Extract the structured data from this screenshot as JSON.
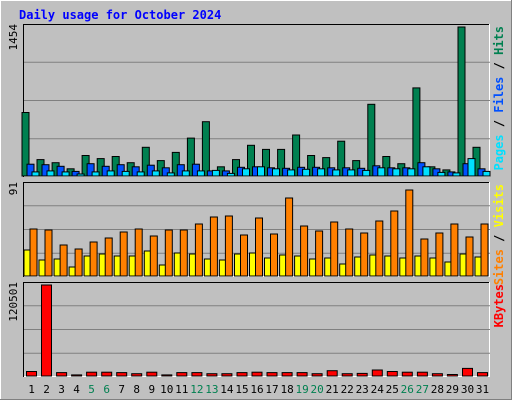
{
  "chart_data": [
    {
      "type": "bar",
      "title": "Daily usage for October 2024",
      "ymax_label": "1454",
      "legend": [
        "Pages",
        "Files",
        "Hits"
      ],
      "legend_separator": " / ",
      "colors": {
        "Pages": "#00e0ff",
        "Files": "#0050ff",
        "Hits": "#008050"
      },
      "categories": [
        "1",
        "2",
        "3",
        "4",
        "5",
        "6",
        "7",
        "8",
        "9",
        "10",
        "11",
        "12",
        "13",
        "14",
        "15",
        "16",
        "17",
        "18",
        "19",
        "20",
        "21",
        "22",
        "23",
        "24",
        "25",
        "26",
        "27",
        "28",
        "29",
        "30",
        "31"
      ],
      "weekend_days": [
        "5",
        "6",
        "12",
        "13",
        "19",
        "20",
        "26",
        "27"
      ],
      "ylim": [
        0,
        1454
      ],
      "series": [
        {
          "name": "Hits",
          "values": [
            620,
            160,
            130,
            70,
            200,
            170,
            190,
            130,
            280,
            150,
            230,
            370,
            530,
            90,
            160,
            300,
            260,
            260,
            400,
            200,
            180,
            340,
            150,
            700,
            190,
            120,
            860,
            90,
            60,
            1454,
            280
          ]
        },
        {
          "name": "Files",
          "values": [
            115,
            110,
            95,
            45,
            120,
            95,
            110,
            90,
            105,
            80,
            110,
            115,
            50,
            50,
            85,
            90,
            80,
            75,
            85,
            85,
            80,
            80,
            75,
            100,
            80,
            80,
            130,
            70,
            40,
            120,
            70
          ]
        },
        {
          "name": "Pages",
          "values": [
            40,
            50,
            40,
            20,
            40,
            50,
            45,
            40,
            50,
            30,
            50,
            50,
            55,
            25,
            70,
            90,
            70,
            60,
            65,
            70,
            60,
            60,
            55,
            80,
            70,
            70,
            90,
            35,
            30,
            170,
            45
          ]
        }
      ]
    },
    {
      "type": "bar",
      "ymax_label": "91",
      "legend": [
        "Sites",
        "Visits"
      ],
      "legend_separator": " / ",
      "colors": {
        "Sites": "#ff8000",
        "Visits": "#ffff00"
      },
      "ylim": [
        0,
        91
      ],
      "series": [
        {
          "name": "Visits",
          "values": [
            26,
            16,
            17,
            9,
            20,
            22,
            20,
            20,
            25,
            11,
            23,
            22,
            17,
            16,
            22,
            23,
            18,
            21,
            20,
            17,
            18,
            12,
            19,
            21,
            20,
            18,
            20,
            18,
            14,
            22,
            19
          ]
        },
        {
          "name": "Sites",
          "values": [
            47,
            46,
            31,
            27,
            34,
            38,
            44,
            47,
            40,
            46,
            46,
            52,
            59,
            60,
            41,
            58,
            42,
            78,
            50,
            45,
            54,
            47,
            43,
            55,
            65,
            86,
            37,
            43,
            52,
            39,
            52
          ]
        }
      ]
    },
    {
      "type": "bar",
      "ymax_label": "120501",
      "legend": [
        "KBytes"
      ],
      "colors": {
        "KBytes": "#ff0000"
      },
      "ylim": [
        0,
        120501
      ],
      "series": [
        {
          "name": "KBytes",
          "values": [
            6000,
            120501,
            4500,
            1500,
            5000,
            5000,
            4500,
            3000,
            5000,
            1500,
            4500,
            4500,
            3000,
            3000,
            4500,
            5000,
            4500,
            4500,
            4500,
            3000,
            7000,
            3000,
            3500,
            8000,
            6000,
            5000,
            5000,
            3000,
            2000,
            10000,
            4500
          ]
        }
      ]
    }
  ]
}
